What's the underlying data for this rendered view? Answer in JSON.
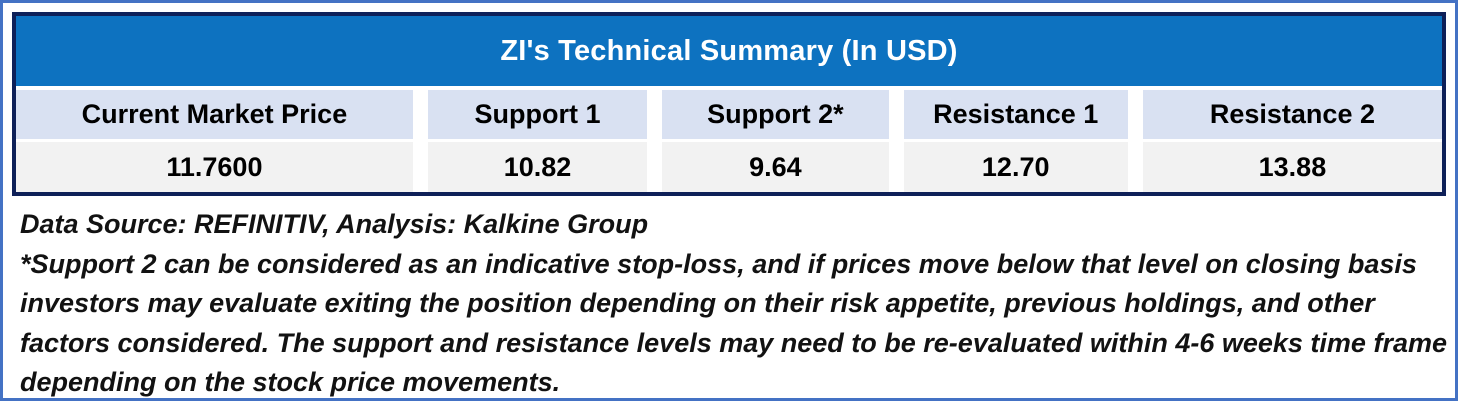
{
  "title": "ZI's Technical Summary (In USD)",
  "chart_data": {
    "type": "table",
    "title": "ZI's Technical Summary (In USD)",
    "columns": [
      "Current Market Price",
      "Support 1",
      "Support 2*",
      "Resistance 1",
      "Resistance 2"
    ],
    "rows": [
      [
        "11.7600",
        "10.82",
        "9.64",
        "12.70",
        "13.88"
      ]
    ]
  },
  "table": {
    "columns": [
      {
        "label": "Current Market Price",
        "value": "11.7600"
      },
      {
        "label": "Support 1",
        "value": "10.82"
      },
      {
        "label": "Support 2*",
        "value": "9.64"
      },
      {
        "label": "Resistance 1",
        "value": "12.70"
      },
      {
        "label": "Resistance 2",
        "value": "13.88"
      }
    ]
  },
  "footnote": {
    "source": "Data Source: REFINITIV, Analysis: Kalkine Group",
    "note_lines": [
      "*Support 2 can be considered as an indicative stop-loss, and if prices move below that level on closing basis",
      "investors may evaluate exiting the position depending on their risk appetite, previous holdings, and other",
      "factors considered. The support and resistance levels may need to be re-evaluated within 4-6 weeks time frame",
      "depending on the stock price movements."
    ]
  },
  "colors": {
    "outer_border": "#4472C4",
    "table_border": "#0E2058",
    "title_bg": "#0D72C0",
    "title_text": "#FFFFFF",
    "header_bg": "#D9E1F2",
    "value_bg": "#F2F2F2",
    "text": "#000000"
  }
}
